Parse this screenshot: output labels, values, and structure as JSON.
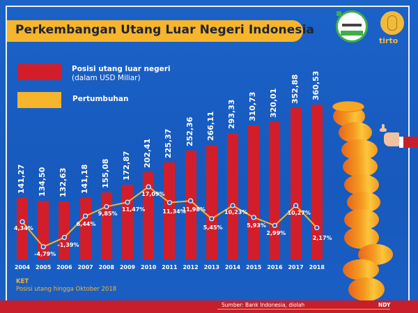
{
  "header": {
    "title": "Perkembangan Utang Luar Negeri Indonesia",
    "logo_badge": "verified-badge-logo",
    "logo_brand": "tirto.id",
    "logo_brand_text": "tirto"
  },
  "legend": {
    "debt_label": "Posisi utang luar negeri",
    "debt_sub": "(dalam USD Miliar)",
    "growth_label": "Pertumbuhan",
    "debt_color": "#d21e2b",
    "growth_color": "#f7b52c"
  },
  "chart_data": {
    "type": "bar",
    "title": "Perkembangan Utang Luar Negeri Indonesia",
    "xlabel": "",
    "ylabel": "Posisi utang luar negeri (dalam USD Miliar)",
    "categories": [
      "2004",
      "2005",
      "2006",
      "2007",
      "2008",
      "2009",
      "2010",
      "2011",
      "2012",
      "2013",
      "2014",
      "2015",
      "2016",
      "2017",
      "2018"
    ],
    "series": [
      {
        "name": "Posisi utang luar negeri (dalam USD Miliar)",
        "type": "bar",
        "color": "#d21e2b",
        "values": [
          141.27,
          134.5,
          132.63,
          141.18,
          155.08,
          172.87,
          202.41,
          225.37,
          252.36,
          266.11,
          293.33,
          310.73,
          320.01,
          352.88,
          360.53
        ],
        "labels": [
          "141,27",
          "134,50",
          "132,63",
          "141,18",
          "155,08",
          "172,87",
          "202,41",
          "225,37",
          "252,36",
          "266,11",
          "293,33",
          "310,73",
          "320,01",
          "352,88",
          "360,53"
        ]
      },
      {
        "name": "Pertumbuhan",
        "type": "line",
        "color": "#f7b52c",
        "unit": "%",
        "values": [
          4.34,
          -4.79,
          -1.39,
          6.44,
          9.85,
          11.47,
          17.09,
          11.34,
          11.98,
          5.45,
          10.23,
          5.93,
          2.99,
          10.27,
          2.17
        ],
        "labels": [
          "4,34%",
          "-4,79%",
          "-1,39%",
          "6,44%",
          "9,85%",
          "11,47%",
          "17,09%",
          "11,34%",
          "11,98%",
          "5,45%",
          "10,23%",
          "5,93%",
          "2,99%",
          "10,27%",
          "2,17%"
        ]
      }
    ],
    "legend_position": "top-left",
    "grid": false
  },
  "notes": {
    "ket_label": "KET",
    "ket_text": "Posisi utang hingga Oktober 2018"
  },
  "footer": {
    "source": "Sumber: Bank Indonesia, diolah",
    "author": "NDY"
  }
}
